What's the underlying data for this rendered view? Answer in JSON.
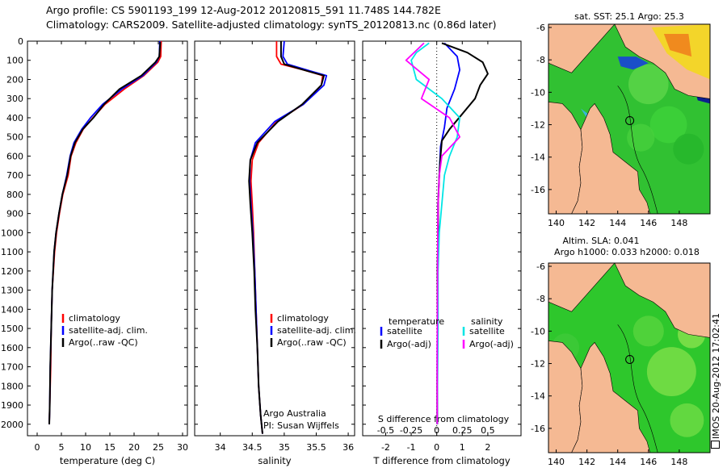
{
  "header": {
    "line1": "Argo profile: CS 5901193_199 12-Aug-2012 20120815_591 11.748S 144.782E",
    "line2": "Climatology: CARS2009. Satellite-adjusted climatology: synTS_20120813.nc (0.86d later)"
  },
  "stamp": "IMOS 20-Aug-2012 17:02:41",
  "colors": {
    "climatology": "#ff0000",
    "satellite": "#0000ff",
    "argo": "#000000",
    "sal_satellite": "#00e5e5",
    "sal_argo": "#ff00ff",
    "land": "#f5b993",
    "ocean_green": "#22c02a"
  },
  "chart_data": [
    {
      "type": "line",
      "id": "temperature",
      "xlabel": "temperature (deg C)",
      "ylabel": "",
      "xlim": [
        -2,
        31
      ],
      "ylim": [
        2060,
        0
      ],
      "xticks": [
        0,
        5,
        10,
        15,
        20,
        25,
        30
      ],
      "yticks": [
        0,
        100,
        200,
        300,
        400,
        500,
        600,
        700,
        800,
        900,
        1000,
        1100,
        1200,
        1300,
        1400,
        1500,
        1600,
        1700,
        1800,
        1900,
        2000
      ],
      "legend": [
        "climatology",
        "satellite-adj. clim.",
        "Argo(..raw -QC)"
      ],
      "series": [
        {
          "name": "climatology",
          "color": "#ff0000",
          "x": [
            25.6,
            25.5,
            24.9,
            22,
            18,
            14,
            11.5,
            9.5,
            8,
            7,
            6.4,
            5.3,
            4.6,
            4.0,
            3.6,
            3.1,
            2.9,
            2.8,
            2.6,
            2.5
          ],
          "y": [
            0,
            80,
            110,
            180,
            250,
            330,
            400,
            460,
            530,
            600,
            700,
            800,
            900,
            1000,
            1100,
            1300,
            1500,
            1700,
            1900,
            2000
          ]
        },
        {
          "name": "satellite-adj. clim.",
          "color": "#0000ff",
          "x": [
            25.3,
            25.2,
            24.6,
            21.8,
            17.5,
            13.5,
            11,
            9.2,
            7.6,
            6.8,
            6.1,
            5.2,
            4.5,
            3.9,
            3.5,
            3.1,
            2.9,
            2.7,
            2.6,
            2.5
          ],
          "y": [
            0,
            80,
            110,
            180,
            250,
            330,
            400,
            460,
            530,
            600,
            700,
            800,
            900,
            1000,
            1100,
            1300,
            1500,
            1700,
            1900,
            2000
          ]
        },
        {
          "name": "Argo(..raw -QC)",
          "color": "#000000",
          "x": [
            25.4,
            25.2,
            24.4,
            21.5,
            17,
            13.8,
            11.6,
            9.4,
            7.8,
            6.9,
            6.2,
            5.2,
            4.5,
            3.9,
            3.5,
            3.1,
            2.9,
            2.7,
            2.6,
            2.5
          ],
          "y": [
            5,
            80,
            110,
            180,
            250,
            330,
            400,
            460,
            530,
            600,
            700,
            800,
            900,
            1000,
            1100,
            1300,
            1500,
            1700,
            1900,
            2000
          ]
        }
      ]
    },
    {
      "type": "line",
      "id": "salinity",
      "xlabel": "salinity",
      "xlim": [
        33.6,
        36.1
      ],
      "ylim": [
        2060,
        0
      ],
      "xticks": [
        34,
        34.5,
        35,
        35.5,
        36
      ],
      "legend": [
        "climatology",
        "satellite-adj. clim.",
        "Argo(..raw -QC)"
      ],
      "annotation": [
        "Argo Australia",
        "PI: Susan Wijffels"
      ],
      "series": [
        {
          "name": "climatology",
          "color": "#ff0000",
          "x": [
            34.88,
            34.88,
            34.95,
            35.3,
            35.6,
            35.58,
            35.3,
            34.88,
            34.6,
            34.5,
            34.48,
            34.5,
            34.52,
            34.54,
            34.56,
            34.58,
            34.6,
            34.63,
            34.66
          ],
          "y": [
            0,
            80,
            120,
            150,
            180,
            230,
            330,
            420,
            530,
            620,
            730,
            850,
            1000,
            1200,
            1400,
            1600,
            1800,
            1950,
            2050
          ]
        },
        {
          "name": "satellite-adj. clim.",
          "color": "#0000ff",
          "x": [
            35.0,
            34.98,
            35.05,
            35.35,
            35.66,
            35.62,
            35.3,
            34.85,
            34.55,
            34.47,
            34.46,
            34.48,
            34.51,
            34.54,
            34.56,
            34.58,
            34.6,
            34.63,
            34.66
          ],
          "y": [
            0,
            80,
            120,
            150,
            180,
            230,
            330,
            420,
            530,
            620,
            730,
            850,
            1000,
            1200,
            1400,
            1600,
            1800,
            1950,
            2050
          ]
        },
        {
          "name": "Argo(..raw -QC)",
          "color": "#000000",
          "x": [
            34.95,
            34.95,
            35.0,
            35.3,
            35.62,
            35.58,
            35.28,
            34.9,
            34.58,
            34.47,
            34.45,
            34.47,
            34.5,
            34.53,
            34.55,
            34.58,
            34.6,
            34.63,
            34.66
          ],
          "y": [
            0,
            80,
            120,
            150,
            180,
            230,
            330,
            420,
            530,
            620,
            730,
            850,
            1000,
            1200,
            1400,
            1600,
            1800,
            1950,
            2050
          ]
        }
      ]
    },
    {
      "type": "line",
      "id": "difference",
      "xlabel": "T difference from climatology",
      "xlabel2": "S difference from climatology",
      "xlim": [
        -2.9,
        3.3
      ],
      "ylim": [
        2060,
        0
      ],
      "xticks": [
        -2,
        -1,
        0,
        1,
        2
      ],
      "xticks2_labels": [
        "-0.5",
        "-0.25",
        "0",
        "0.25",
        "0.5"
      ],
      "xticks2_positions": [
        -2,
        -1,
        0,
        1,
        2
      ],
      "legend_left_title": "temperature",
      "legend_right_title": "salinity",
      "legend": [
        "satellite",
        "Argo(-adj)",
        "satellite",
        "Argo(-adj)"
      ],
      "series": [
        {
          "name": "satellite",
          "color": "#0000ff",
          "x": [
            0.3,
            0.8,
            0.9,
            0.7,
            0.4,
            0.3,
            0.15,
            0.1,
            0.05,
            0.05,
            0.03,
            0.03,
            0.02,
            0.02,
            0.02
          ],
          "y": [
            10,
            80,
            150,
            250,
            350,
            450,
            550,
            700,
            850,
            1000,
            1200,
            1400,
            1600,
            1800,
            2000
          ]
        },
        {
          "name": "Argo(-adj)",
          "color": "#000000",
          "x": [
            0.2,
            1.2,
            1.8,
            2.0,
            1.7,
            1.5,
            1.0,
            0.5,
            0.2,
            0.15,
            0.1,
            0.05,
            0.05,
            0.03,
            0.03,
            0.02,
            0.02
          ],
          "y": [
            10,
            60,
            110,
            170,
            230,
            300,
            380,
            460,
            520,
            600,
            700,
            850,
            1000,
            1200,
            1500,
            1800,
            2000
          ]
        },
        {
          "name": "satellite",
          "color": "#00e5e5",
          "x": [
            -0.3,
            -0.8,
            -1.0,
            -0.8,
            0.2,
            0.9,
            0.8,
            0.5,
            0.3,
            0.2,
            0.1,
            0.05,
            0.05,
            0.03,
            0.02
          ],
          "y": [
            10,
            60,
            100,
            200,
            300,
            400,
            500,
            600,
            700,
            850,
            1000,
            1200,
            1500,
            1800,
            2000
          ]
        },
        {
          "name": "Argo(-adj)",
          "color": "#ff00ff",
          "x": [
            -0.5,
            -1.2,
            -0.3,
            -0.6,
            0.5,
            0.9,
            0.2,
            0.1,
            0.05,
            0.04,
            0.03,
            0.02,
            0.02
          ],
          "y": [
            10,
            100,
            200,
            300,
            400,
            500,
            600,
            700,
            850,
            1000,
            1300,
            1600,
            2000
          ]
        }
      ]
    },
    {
      "type": "heatmap",
      "id": "sst_map",
      "title": "sat. SST: 25.1  Argo: 25.3",
      "xlim": [
        139.5,
        150
      ],
      "ylim": [
        -17.5,
        -5.8
      ],
      "xticks": [
        140,
        142,
        144,
        146,
        148
      ],
      "yticks": [
        -6,
        -8,
        -10,
        -12,
        -14,
        -16
      ],
      "marker": {
        "lon": 144.782,
        "lat": -11.748
      }
    },
    {
      "type": "heatmap",
      "id": "sla_map",
      "title_line1": "Altim. SLA: 0.041",
      "title_line2": "Argo h1000: 0.033  h2000: 0.018",
      "xlim": [
        139.5,
        150
      ],
      "ylim": [
        -17.5,
        -5.8
      ],
      "xticks": [
        140,
        142,
        144,
        146,
        148
      ],
      "yticks": [
        -6,
        -8,
        -10,
        -12,
        -14,
        -16
      ],
      "marker": {
        "lon": 144.782,
        "lat": -11.748
      }
    }
  ]
}
